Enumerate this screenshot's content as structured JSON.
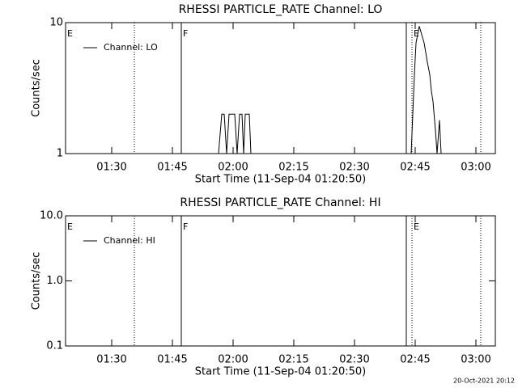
{
  "chart_data": [
    {
      "type": "line",
      "title": "RHESSI PARTICLE_RATE Channel: LO",
      "xlabel": "Start Time (11-Sep-04 01:20:50)",
      "ylabel": "Counts/sec",
      "ylog": true,
      "ylim": [
        1,
        10
      ],
      "yticks": [
        1,
        10
      ],
      "xlim": [
        78.6,
        184.8
      ],
      "xticks": [
        {
          "value": 90,
          "label": "01:30"
        },
        {
          "value": 105,
          "label": "01:45"
        },
        {
          "value": 120,
          "label": "02:00"
        },
        {
          "value": 135,
          "label": "02:15"
        },
        {
          "value": 150,
          "label": "02:30"
        },
        {
          "value": 165,
          "label": "02:45"
        },
        {
          "value": 180,
          "label": "03:00"
        }
      ],
      "legend": "upper left",
      "series": [
        {
          "name": "Channel: LO",
          "color": "#000000",
          "x": [
            78.6,
            116.4,
            117.2,
            117.8,
            118.4,
            119,
            120.4,
            121,
            121.6,
            122.2,
            122.6,
            123,
            124,
            124.4,
            164,
            164.8,
            165.2,
            166,
            167.2,
            168,
            168.6,
            169,
            169.4,
            170,
            170.4,
            171,
            171.4,
            184.8
          ],
          "values": [
            1,
            1,
            2,
            2,
            1,
            2,
            2,
            1,
            2,
            2,
            1,
            2,
            2,
            1,
            1,
            4,
            7,
            9.4,
            7,
            5,
            4,
            3,
            2.5,
            1.5,
            1,
            1.8,
            1,
            1
          ]
        }
      ],
      "vlines": [
        {
          "x": 95.6,
          "style": "dotted"
        },
        {
          "x": 107.2,
          "style": "solid"
        },
        {
          "x": 162.8,
          "style": "solid"
        },
        {
          "x": 164.2,
          "style": "dotted"
        },
        {
          "x": 181.2,
          "style": "dotted"
        }
      ],
      "annotations": [
        {
          "text": "E",
          "x": 78.6
        },
        {
          "text": "F",
          "x": 107.2
        },
        {
          "text": "E",
          "x": 164.2
        }
      ]
    },
    {
      "type": "line",
      "title": "RHESSI PARTICLE_RATE Channel: HI",
      "xlabel": "Start Time (11-Sep-04 01:20:50)",
      "ylabel": "Counts/sec",
      "ylog": true,
      "ylim": [
        0.1,
        10
      ],
      "yticks": [
        {
          "value": 0.1,
          "label": "0.1"
        },
        {
          "value": 1,
          "label": "1.0"
        },
        {
          "value": 10,
          "label": "10.0"
        }
      ],
      "xlim": [
        78.6,
        184.8
      ],
      "xticks": [
        {
          "value": 90,
          "label": "01:30"
        },
        {
          "value": 105,
          "label": "01:45"
        },
        {
          "value": 120,
          "label": "02:00"
        },
        {
          "value": 135,
          "label": "02:15"
        },
        {
          "value": 150,
          "label": "02:30"
        },
        {
          "value": 165,
          "label": "02:45"
        },
        {
          "value": 180,
          "label": "03:00"
        }
      ],
      "legend": "upper left",
      "series": [
        {
          "name": "Channel: HI",
          "color": "#000000",
          "x": [],
          "values": []
        }
      ],
      "vlines": [
        {
          "x": 95.6,
          "style": "dotted"
        },
        {
          "x": 107.2,
          "style": "solid"
        },
        {
          "x": 162.8,
          "style": "solid"
        },
        {
          "x": 164.2,
          "style": "dotted"
        },
        {
          "x": 181.2,
          "style": "dotted"
        }
      ],
      "annotations": [
        {
          "text": "E",
          "x": 78.6
        },
        {
          "text": "F",
          "x": 107.2
        },
        {
          "text": "E",
          "x": 164.2
        }
      ]
    }
  ],
  "footer": "20-Oct-2021 20:12"
}
